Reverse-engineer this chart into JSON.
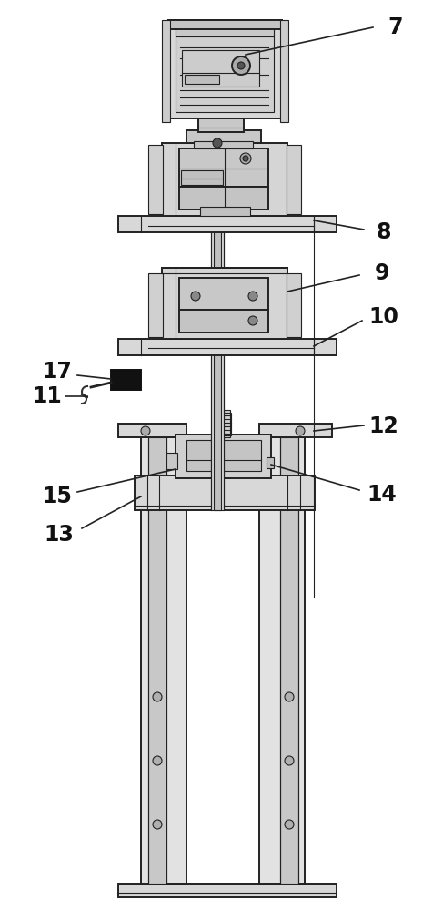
{
  "bg_color": "#ffffff",
  "lc": "#222222",
  "lw_main": 1.4,
  "lw_thin": 0.8,
  "label_fontsize": 17,
  "figsize": [
    4.87,
    10.0
  ],
  "dpi": 100
}
